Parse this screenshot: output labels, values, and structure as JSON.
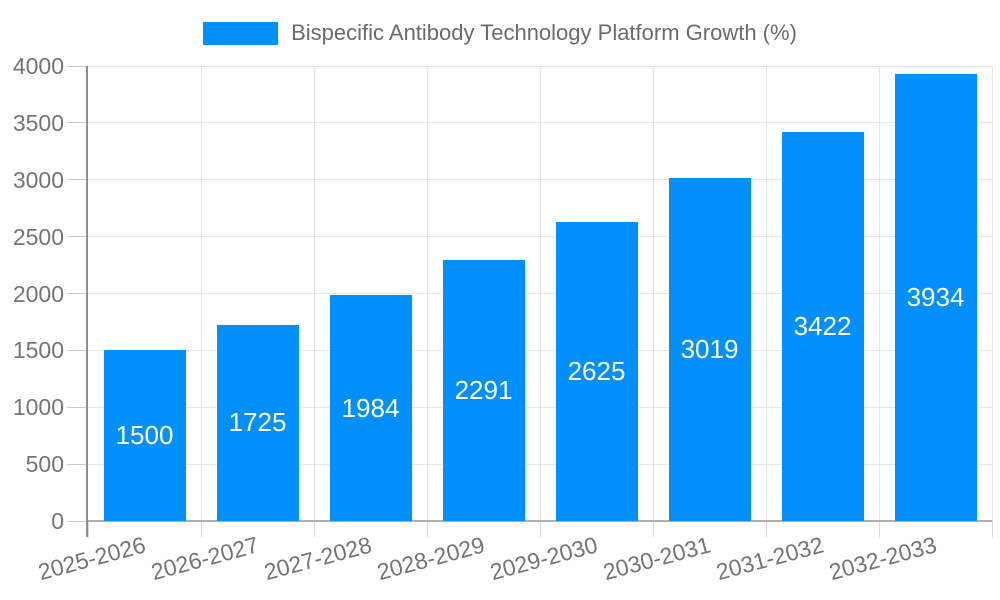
{
  "legend": {
    "label": "Bispecific Antibody Technology Platform Growth (%)",
    "swatch_color": "#008FFB"
  },
  "chart_data": {
    "type": "bar",
    "title": "Bispecific Antibody Technology Platform Growth (%)",
    "categories": [
      "2025-2026",
      "2026-2027",
      "2027-2028",
      "2028-2029",
      "2029-2030",
      "2030-2031",
      "2031-2032",
      "2032-2033"
    ],
    "series": [
      {
        "name": "Bispecific Antibody Technology Platform Growth (%)",
        "values": [
          1500,
          1725,
          1984,
          2291,
          2625,
          3019,
          3422,
          3934
        ]
      }
    ],
    "data_labels": [
      "1500",
      "1725",
      "1984",
      "2291",
      "2625",
      "3019",
      "3422",
      "3934"
    ],
    "xlabel": "",
    "ylabel": "",
    "ylim": [
      0,
      4000
    ],
    "ytick_step": 500,
    "ytick_labels": [
      "0",
      "500",
      "1000",
      "1500",
      "2000",
      "2500",
      "3000",
      "3500",
      "4000"
    ],
    "grid": true,
    "legend_position": "top",
    "xlabel_rotation_deg": -15,
    "colors": {
      "bar": "#008FFB",
      "data_label": "#FFFFFF",
      "axis_text": "#757575",
      "legend_text": "#6B6B6B",
      "gridline": "#E6E6E6",
      "axis_line": "#8F8F8F"
    }
  }
}
